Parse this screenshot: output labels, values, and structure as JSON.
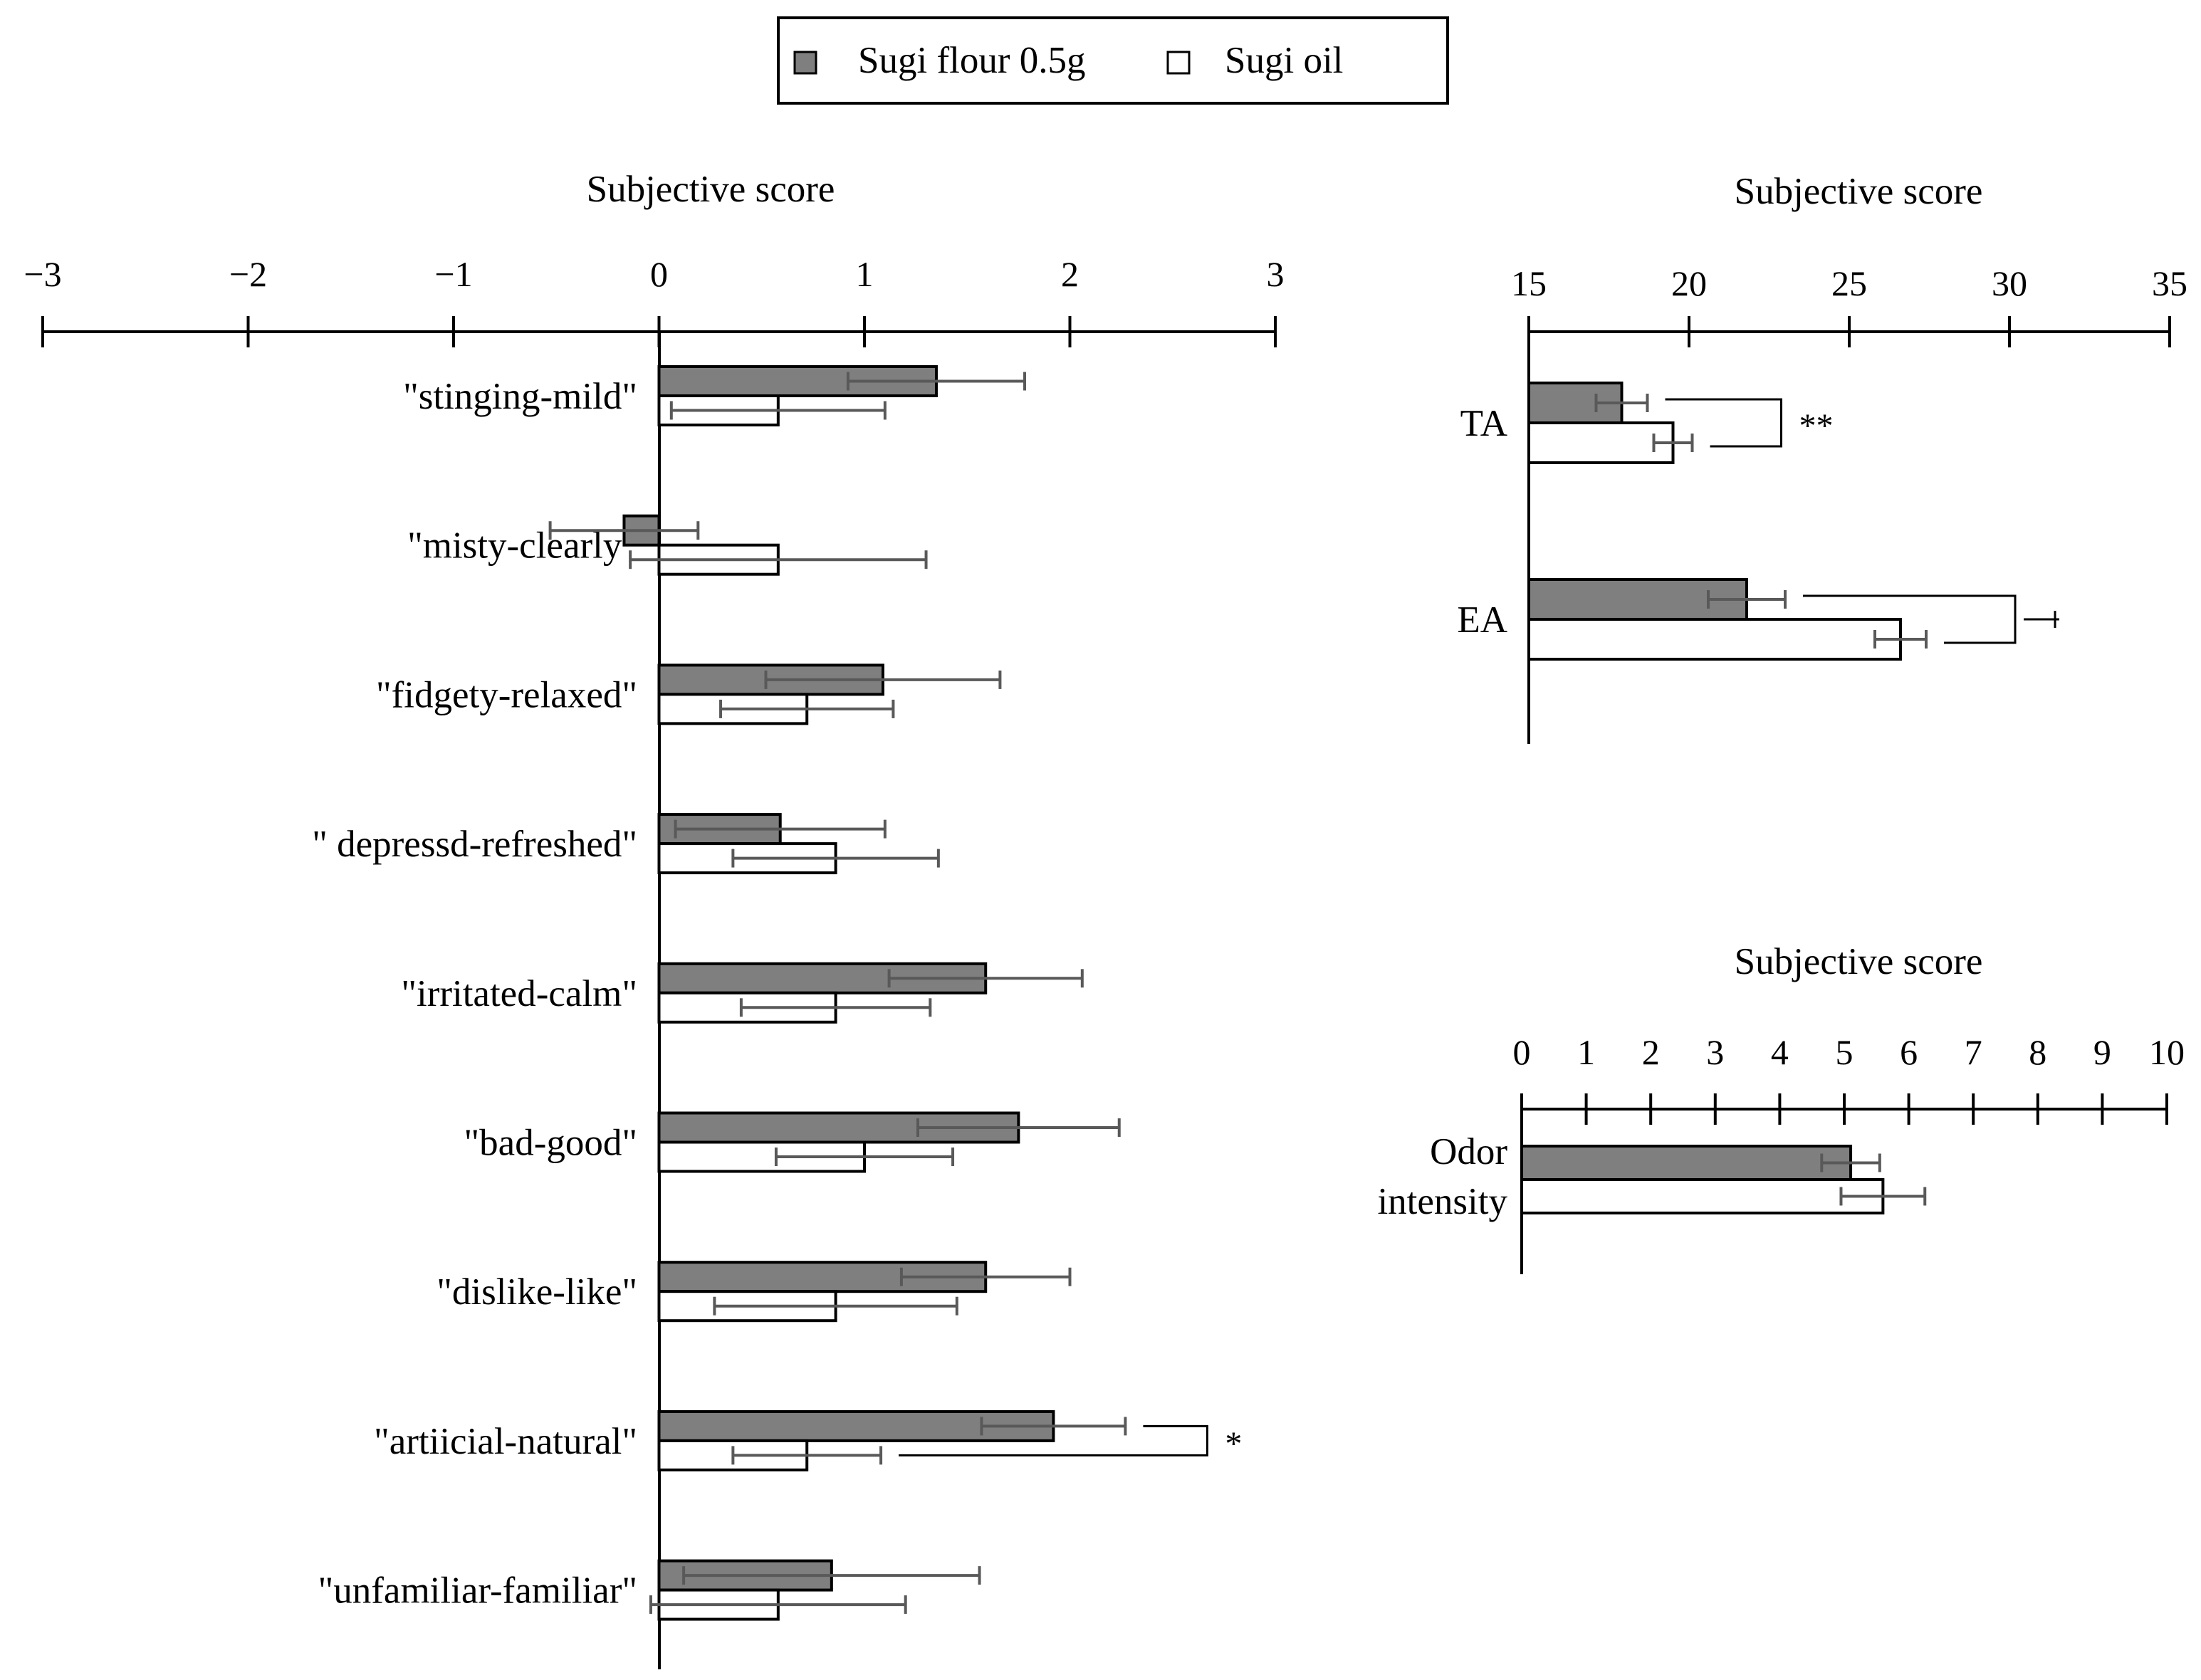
{
  "legend": {
    "position": "top-center",
    "items": [
      {
        "label": "Sugi flour 0.5g",
        "color": "#7f7f7f"
      },
      {
        "label": "Sugi oil",
        "color": "#ffffff"
      }
    ]
  },
  "colors": {
    "series_a": "#7f7f7f",
    "series_b": "#ffffff",
    "errorbar": "#595959",
    "axis": "#000000"
  },
  "chart_data": [
    {
      "type": "bar",
      "orientation": "horizontal",
      "title": "Subjective score",
      "xlim": [
        -3,
        3
      ],
      "ticks": [
        -3,
        -2,
        -1,
        0,
        1,
        2,
        3
      ],
      "tick_labels": [
        "−3",
        "−2",
        "−1",
        "0",
        "1",
        "2",
        "3"
      ],
      "categories": [
        "\"stinging-mild\"",
        "\"misty-clearly\"",
        "\"fidgety-relaxed\"",
        "\" depressd-refreshed\"",
        "\"irritated-calm\"",
        "\"bad-good\"",
        "\"dislike-like\"",
        "\"artiicial-natural\"",
        "\"unfamiliar-familiar\""
      ],
      "series": [
        {
          "name": "Sugi flour 0.5g",
          "values": [
            1.35,
            -0.17,
            1.09,
            0.59,
            1.59,
            1.75,
            1.59,
            1.92,
            0.84
          ],
          "errors": [
            0.43,
            0.36,
            0.57,
            0.51,
            0.47,
            0.49,
            0.41,
            0.35,
            0.72
          ]
        },
        {
          "name": "Sugi oil",
          "values": [
            0.58,
            0.58,
            0.72,
            0.86,
            0.86,
            1.0,
            0.86,
            0.72,
            0.58
          ],
          "errors": [
            0.52,
            0.72,
            0.42,
            0.5,
            0.46,
            0.43,
            0.59,
            0.36,
            0.62
          ]
        }
      ],
      "significance": [
        {
          "category_index": 7,
          "label": "*"
        }
      ]
    },
    {
      "type": "bar",
      "orientation": "horizontal",
      "title": "Subjective score",
      "xlim": [
        15,
        35
      ],
      "ticks": [
        15,
        20,
        25,
        30,
        35
      ],
      "tick_labels": [
        "15",
        "20",
        "25",
        "30",
        "35"
      ],
      "categories": [
        "TA",
        "EA"
      ],
      "series": [
        {
          "name": "Sugi flour 0.5g",
          "values": [
            17.9,
            21.8
          ],
          "errors": [
            0.8,
            1.2
          ]
        },
        {
          "name": "Sugi oil",
          "values": [
            19.5,
            26.6
          ],
          "errors": [
            0.6,
            0.8
          ]
        }
      ],
      "significance": [
        {
          "category_index": 0,
          "label": "**"
        },
        {
          "category_index": 1,
          "label": "+"
        }
      ]
    },
    {
      "type": "bar",
      "orientation": "horizontal",
      "title": "Subjective score",
      "xlim": [
        0,
        10
      ],
      "ticks": [
        0,
        1,
        2,
        3,
        4,
        5,
        6,
        7,
        8,
        9,
        10
      ],
      "tick_labels": [
        "0",
        "1",
        "2",
        "3",
        "4",
        "5",
        "6",
        "7",
        "8",
        "9",
        "10"
      ],
      "categories": [
        [
          "Odor",
          "intensity"
        ]
      ],
      "series": [
        {
          "name": "Sugi flour 0.5g",
          "values": [
            5.1
          ],
          "errors": [
            0.45
          ]
        },
        {
          "name": "Sugi oil",
          "values": [
            5.6
          ],
          "errors": [
            0.65
          ]
        }
      ],
      "significance": []
    }
  ]
}
